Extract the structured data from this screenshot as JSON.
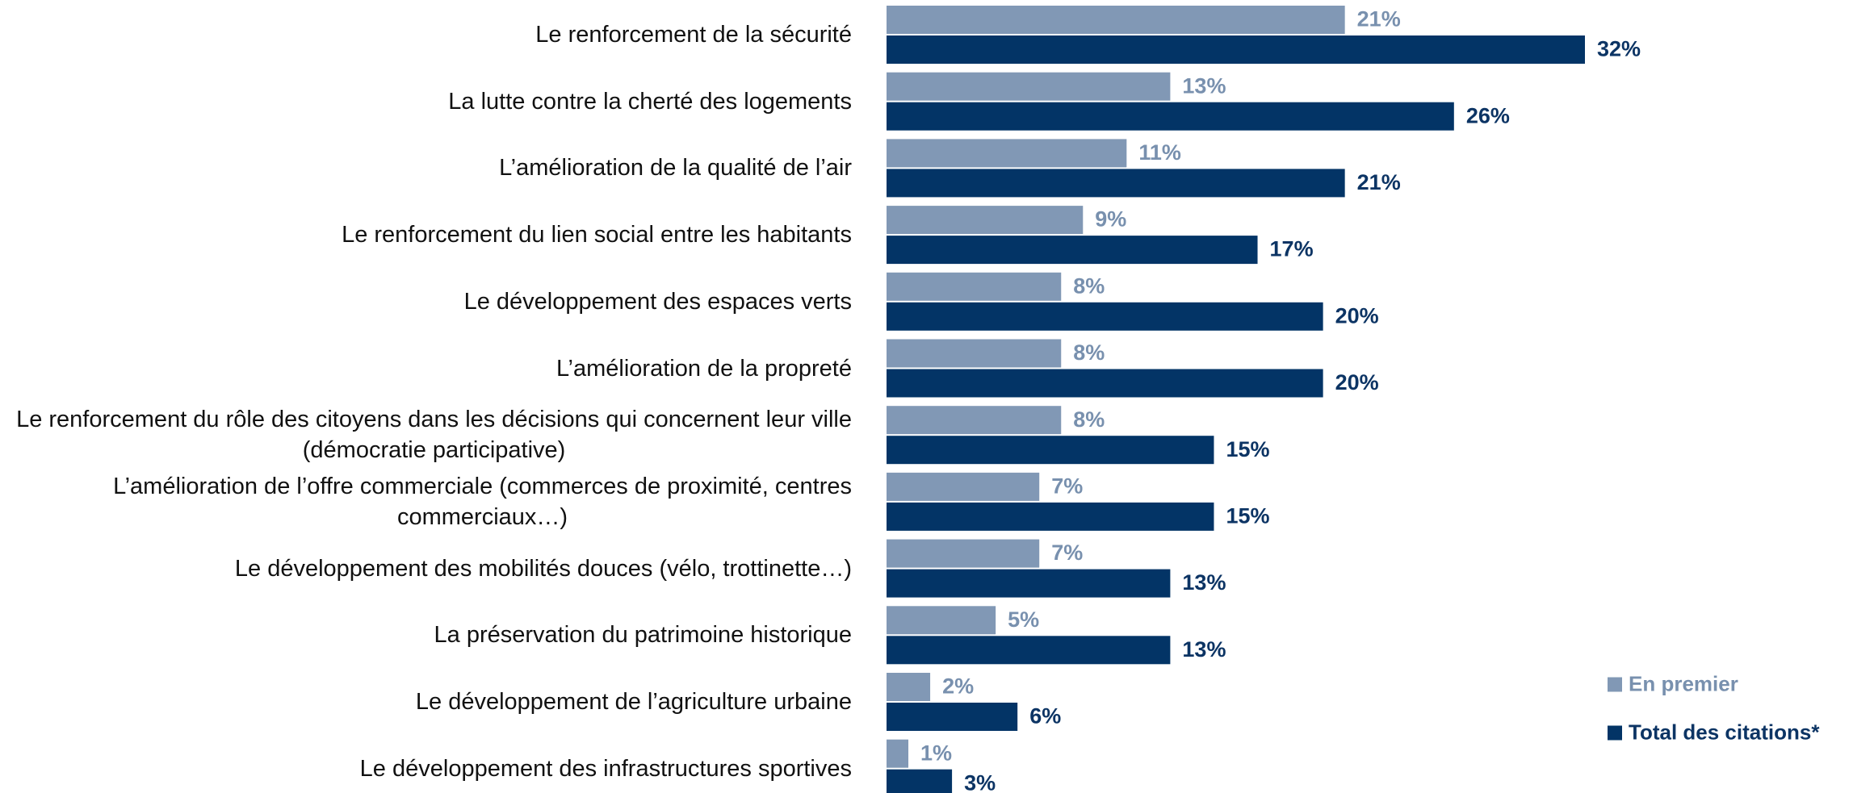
{
  "chart_data": {
    "type": "bar",
    "orientation": "horizontal",
    "categories": [
      "Le renforcement de la sécurité",
      "La lutte contre la cherté des logements",
      "L’amélioration de la qualité de l’air",
      "Le renforcement du lien social entre les habitants",
      "Le développement des espaces verts",
      "L’amélioration de la propreté",
      "Le renforcement du rôle des citoyens dans les décisions qui concernent leur ville\n(démocratie participative)",
      "L’amélioration de l’offre commerciale (commerces de proximité, centres\ncommerciaux…)",
      "Le développement des mobilités douces (vélo, trottinette…)",
      "La préservation du patrimoine historique",
      "Le développement de l’agriculture urbaine",
      "Le développement des infrastructures sportives"
    ],
    "series": [
      {
        "name": "En premier",
        "color": "#8198b5",
        "label_color": "#7890ae",
        "values": [
          21,
          13,
          11,
          9,
          8,
          8,
          8,
          7,
          7,
          5,
          2,
          1
        ],
        "value_labels": [
          "21%",
          "13%",
          "11%",
          "9%",
          "8%",
          "8%",
          "8%",
          "7%",
          "7%",
          "5%",
          "2%",
          "1%"
        ]
      },
      {
        "name": "Total des citations*",
        "color": "#033466",
        "label_color": "#0c3464",
        "values": [
          32,
          26,
          21,
          17,
          20,
          20,
          15,
          15,
          13,
          13,
          6,
          3
        ],
        "value_labels": [
          "32%",
          "26%",
          "21%",
          "17%",
          "20%",
          "20%",
          "15%",
          "15%",
          "13%",
          "13%",
          "6%",
          "3%"
        ]
      }
    ],
    "legend_position": "bottom-right"
  }
}
